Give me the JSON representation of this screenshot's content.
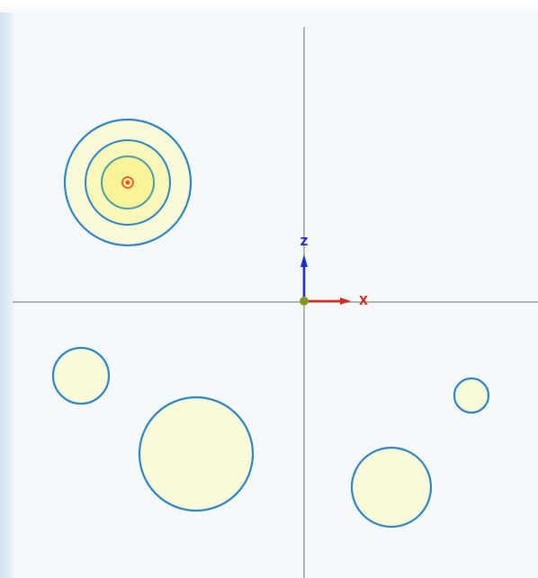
{
  "viewport": {
    "background": "#f6f9fb",
    "axis_line_color": "#8a8a8a"
  },
  "gizmo": {
    "x_label": "X",
    "z_label": "Z",
    "x_color": "#d42a1f",
    "z_color": "#1f2bd4",
    "origin_color": "#6e9f2a"
  },
  "colors": {
    "circle_stroke": "#2e86c7",
    "circle_fill": "#fbfad8",
    "contour_mid_fill": "#fbf7b8",
    "contour_inner_fill": "#fbf39a",
    "contour_stroke_inner": "#4aa0a8",
    "peak_marker": "#f05a2a"
  },
  "scene": {
    "objects": [
      {
        "name": "object-contour-large",
        "kind": "contour"
      },
      {
        "name": "object-circle-small-left",
        "kind": "circle"
      },
      {
        "name": "object-circle-large-bottom",
        "kind": "circle"
      },
      {
        "name": "object-circle-tiny-right",
        "kind": "circle"
      },
      {
        "name": "object-circle-medium-bottom-right",
        "kind": "circle"
      }
    ]
  }
}
